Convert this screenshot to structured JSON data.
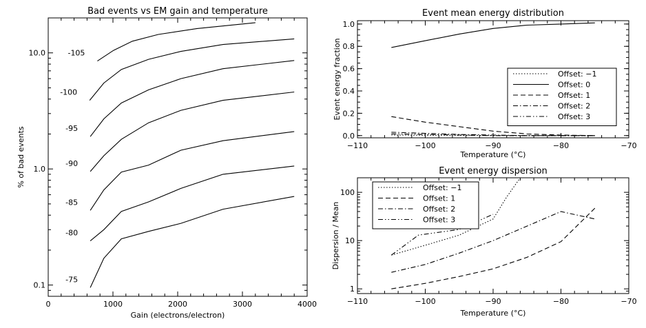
{
  "chart_data": [
    {
      "type": "line",
      "title": "Bad events vs EM gain and temperature",
      "xlabel": "Gain (electrons/electron)",
      "ylabel": "% of bad events",
      "xlim": [
        0,
        4000
      ],
      "ylim": [
        0.08,
        20
      ],
      "yscale": "log",
      "xticks": [
        "0",
        "1000",
        "2000",
        "3000",
        "4000"
      ],
      "yticks": [
        "0.1",
        "1.0",
        "10.0"
      ],
      "series": [
        {
          "label": "-75",
          "x": [
            650,
            860,
            1130,
            1550,
            2050,
            2700,
            3800
          ],
          "y": [
            0.095,
            0.17,
            0.25,
            0.29,
            0.34,
            0.45,
            0.58
          ]
        },
        {
          "label": "-80",
          "x": [
            650,
            860,
            1130,
            1550,
            2050,
            2700,
            3800
          ],
          "y": [
            0.24,
            0.3,
            0.43,
            0.52,
            0.68,
            0.9,
            1.06
          ]
        },
        {
          "label": "-85",
          "x": [
            650,
            860,
            1130,
            1550,
            2050,
            2700,
            3800
          ],
          "y": [
            0.44,
            0.66,
            0.94,
            1.08,
            1.45,
            1.75,
            2.1
          ]
        },
        {
          "label": "-90",
          "x": [
            650,
            860,
            1130,
            1550,
            2050,
            2700,
            3800
          ],
          "y": [
            0.95,
            1.3,
            1.8,
            2.5,
            3.2,
            3.9,
            4.6
          ]
        },
        {
          "label": "-95",
          "x": [
            650,
            860,
            1130,
            1550,
            2050,
            2700,
            3800
          ],
          "y": [
            1.9,
            2.7,
            3.7,
            4.8,
            6.0,
            7.3,
            8.6
          ]
        },
        {
          "label": "-100",
          "x": [
            640,
            860,
            1130,
            1550,
            2050,
            2700,
            3800
          ],
          "y": [
            3.9,
            5.5,
            7.2,
            8.8,
            10.3,
            11.8,
            13.2
          ]
        },
        {
          "label": "-105",
          "x": [
            760,
            1010,
            1300,
            1700,
            2300,
            3200
          ],
          "y": [
            8.5,
            10.5,
            12.6,
            14.4,
            16.2,
            18.2
          ]
        }
      ]
    },
    {
      "type": "line",
      "title": "Event mean energy distribution",
      "xlabel": "Temperature (°C)",
      "ylabel": "Event energy fraction",
      "xlim": [
        -110,
        -70
      ],
      "ylim": [
        -0.02,
        1.03
      ],
      "xticks": [
        "−110",
        "−100",
        "−90",
        "−80",
        "−70"
      ],
      "yticks": [
        "0.0",
        "0.2",
        "0.4",
        "0.6",
        "0.8",
        "1.0"
      ],
      "legend": "center-right",
      "series": [
        {
          "name": "Offset: −1",
          "dash": "dotted",
          "x": [
            -105,
            -100,
            -95,
            -90,
            -85,
            -80,
            -75
          ],
          "y": [
            0.005,
            0.003,
            0.002,
            0.001,
            0.0,
            0.0,
            0.0
          ]
        },
        {
          "name": "Offset: 0",
          "dash": "solid",
          "x": [
            -105,
            -100,
            -95,
            -90,
            -85,
            -80,
            -75
          ],
          "y": [
            0.79,
            0.85,
            0.91,
            0.96,
            0.99,
            1.0,
            1.01
          ]
        },
        {
          "name": "Offset: 1",
          "dash": "dashed",
          "x": [
            -105,
            -100,
            -95,
            -90,
            -85,
            -80,
            -75
          ],
          "y": [
            0.17,
            0.12,
            0.08,
            0.04,
            0.015,
            0.005,
            0.0
          ]
        },
        {
          "name": "Offset: 2",
          "dash": "dashdot",
          "x": [
            -105,
            -100,
            -95,
            -90,
            -85,
            -80,
            -75
          ],
          "y": [
            0.03,
            0.02,
            0.01,
            0.005,
            0.0,
            0.0,
            0.0
          ]
        },
        {
          "name": "Offset: 3",
          "dash": "dashdotdot",
          "x": [
            -105,
            -100,
            -95,
            -90,
            -85,
            -80,
            -75
          ],
          "y": [
            0.015,
            0.01,
            0.005,
            0.0,
            0.0,
            0.0,
            0.0
          ]
        }
      ]
    },
    {
      "type": "line",
      "title": "Event energy dispersion",
      "xlabel": "Temperature (°C)",
      "ylabel": "Dispersion / Mean",
      "xlim": [
        -110,
        -70
      ],
      "ylim": [
        0.8,
        200
      ],
      "yscale": "log",
      "xticks": [
        "−110",
        "−100",
        "−90",
        "−80",
        "−70"
      ],
      "yticks": [
        "1",
        "10",
        "100"
      ],
      "legend": "top-left",
      "series": [
        {
          "name": "Offset: −1",
          "dash": "dotted",
          "x": [
            -105,
            -100,
            -95,
            -90,
            -88,
            -86
          ],
          "y": [
            5,
            8,
            13,
            28,
            80,
            200
          ]
        },
        {
          "name": "Offset: 1",
          "dash": "dashed",
          "x": [
            -105,
            -100,
            -95,
            -90,
            -85,
            -80,
            -75
          ],
          "y": [
            1.0,
            1.3,
            1.8,
            2.6,
            4.5,
            9.5,
            47
          ]
        },
        {
          "name": "Offset: 2",
          "dash": "dashdot",
          "x": [
            -105,
            -100,
            -95,
            -90,
            -85,
            -80,
            -75
          ],
          "y": [
            2.2,
            3.2,
            5.5,
            10,
            20,
            40,
            28
          ]
        },
        {
          "name": "Offset: 3",
          "dash": "dashdotdot",
          "x": [
            -105,
            -101,
            -95,
            -90
          ],
          "y": [
            5,
            13,
            17,
            35
          ]
        }
      ]
    }
  ]
}
